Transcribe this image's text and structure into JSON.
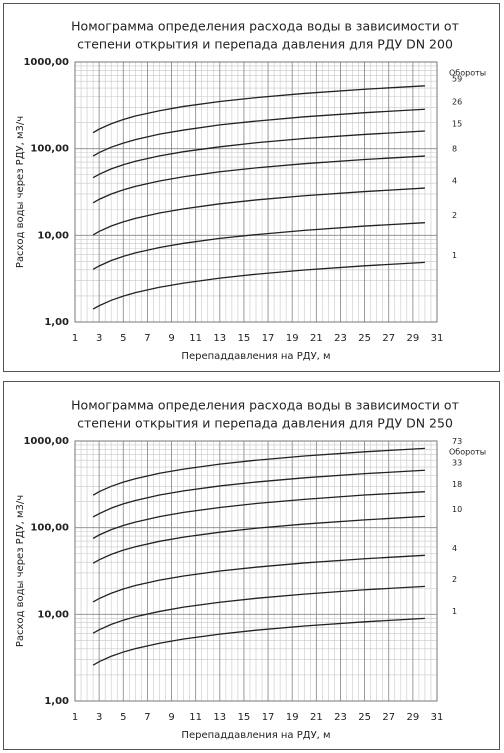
{
  "chart_data": [
    {
      "type": "line",
      "title_lines": [
        "Номограмма  определения расхода воды в зависимости от",
        "степени открытия и перепада давления для РДУ DN 200"
      ],
      "x_label": "Перепаддавления на РДУ, м",
      "y_label": "Расход воды через РДУ, м3/ч",
      "legend_title": "Обороты",
      "y_log": true,
      "grid": true,
      "minor_grid": true,
      "xlim": [
        1,
        31
      ],
      "xticks": [
        1,
        3,
        5,
        7,
        9,
        11,
        13,
        15,
        17,
        19,
        21,
        23,
        25,
        27,
        29,
        31
      ],
      "ylim": [
        1,
        1000
      ],
      "yticks": [
        {
          "value": 1,
          "label": "1,00"
        },
        {
          "value": 10,
          "label": "10,00"
        },
        {
          "value": 100,
          "label": "100,00"
        },
        {
          "value": 1000,
          "label": "1000,00"
        }
      ],
      "x": [
        2.5,
        3,
        4,
        5,
        6,
        8,
        10,
        13,
        16,
        20,
        25,
        30
      ],
      "series": [
        {
          "name": "59",
          "color": "#222222",
          "values": [
            153,
            168,
            194,
            217,
            238,
            274,
            307,
            350,
            388,
            434,
            485,
            531
          ]
        },
        {
          "name": "26",
          "color": "#222222",
          "values": [
            82.2,
            90.1,
            104,
            116,
            127,
            147,
            164,
            188,
            208,
            233,
            260,
            285
          ]
        },
        {
          "name": "15",
          "color": "#222222",
          "values": [
            46.2,
            50.6,
            58.4,
            65.3,
            71.5,
            82.6,
            92.3,
            105,
            117,
            131,
            146,
            160
          ]
        },
        {
          "name": "8",
          "color": "#222222",
          "values": [
            23.7,
            26.0,
            30.0,
            33.5,
            36.7,
            42.4,
            47.4,
            54.1,
            60.0,
            67.1,
            75.0,
            82.2
          ]
        },
        {
          "name": "4",
          "color": "#222222",
          "values": [
            10.1,
            11.1,
            12.8,
            14.3,
            15.7,
            18.1,
            20.2,
            23.1,
            25.6,
            28.6,
            32.0,
            35.1
          ]
        },
        {
          "name": "2",
          "color": "#222222",
          "values": [
            4.05,
            4.43,
            5.12,
            5.72,
            6.27,
            7.24,
            8.09,
            9.23,
            10.2,
            11.4,
            12.8,
            14.0
          ]
        },
        {
          "name": "1",
          "color": "#222222",
          "values": [
            1.41,
            1.54,
            1.78,
            1.99,
            2.18,
            2.52,
            2.81,
            3.21,
            3.56,
            3.98,
            4.45,
            4.87
          ]
        }
      ]
    },
    {
      "type": "line",
      "title_lines": [
        "Номограмма  определения расхода воды в зависимости от",
        "степени открытия и перепада давления для РДУ DN 250"
      ],
      "x_label": "Перепаддавления на РДУ, м",
      "y_label": "Расход воды через РДУ, м3/ч",
      "legend_title": "Обороты",
      "y_log": true,
      "grid": true,
      "minor_grid": true,
      "xlim": [
        1,
        31
      ],
      "xticks": [
        1,
        3,
        5,
        7,
        9,
        11,
        13,
        15,
        17,
        19,
        21,
        23,
        25,
        27,
        29,
        31
      ],
      "ylim": [
        1,
        1000
      ],
      "yticks": [
        {
          "value": 1,
          "label": "1,00"
        },
        {
          "value": 10,
          "label": "10,00"
        },
        {
          "value": 100,
          "label": "100,00"
        },
        {
          "value": 1000,
          "label": "1000,00"
        }
      ],
      "x": [
        2.5,
        3,
        4,
        5,
        6,
        8,
        10,
        13,
        16,
        20,
        25,
        30
      ],
      "series": [
        {
          "name": "73",
          "color": "#222222",
          "values": [
            237,
            260,
            300,
            335,
            367,
            424,
            474,
            541,
            600,
            671,
            750,
            822
          ]
        },
        {
          "name": "33",
          "color": "#222222",
          "values": [
            133,
            145,
            168,
            188,
            206,
            238,
            266,
            303,
            336,
            376,
            420,
            460
          ]
        },
        {
          "name": "18",
          "color": "#222222",
          "values": [
            75.1,
            82.3,
            95.0,
            106,
            116,
            134,
            150,
            171,
            190,
            212,
            238,
            260
          ]
        },
        {
          "name": "10",
          "color": "#222222",
          "values": [
            38.9,
            42.6,
            49.2,
            55.0,
            60.2,
            69.6,
            77.8,
            88.7,
            98.4,
            110,
            123,
            135
          ]
        },
        {
          "name": "4",
          "color": "#222222",
          "values": [
            13.9,
            15.2,
            17.5,
            19.6,
            21.5,
            24.8,
            27.7,
            31.6,
            35.0,
            39.2,
            43.8,
            48.0
          ]
        },
        {
          "name": "2",
          "color": "#222222",
          "values": [
            6.06,
            6.63,
            7.66,
            8.56,
            9.38,
            10.8,
            12.1,
            13.8,
            15.3,
            17.1,
            19.2,
            21.0
          ]
        },
        {
          "name": "1",
          "color": "#222222",
          "values": [
            2.59,
            2.84,
            3.28,
            3.67,
            4.02,
            4.64,
            5.19,
            5.91,
            6.56,
            7.33,
            8.2,
            8.98
          ]
        }
      ]
    }
  ]
}
